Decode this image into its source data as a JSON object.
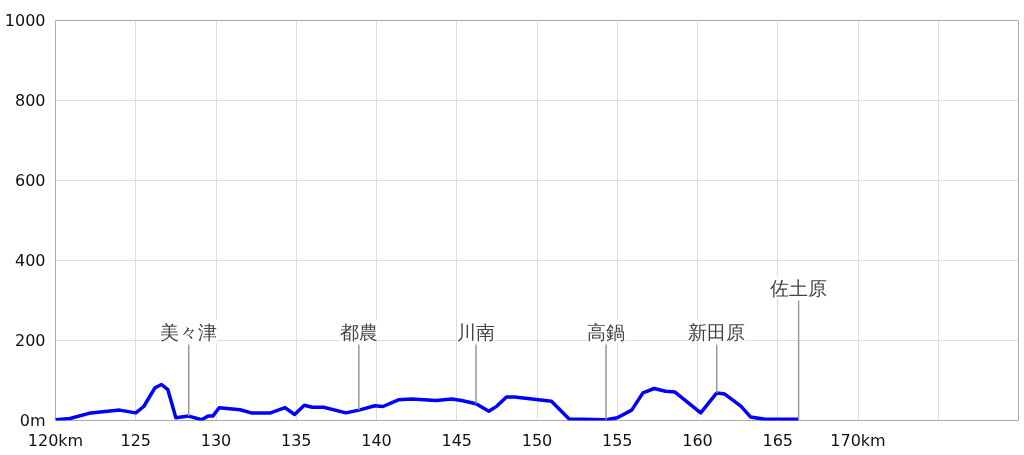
{
  "chart_data": {
    "type": "line",
    "x": [
      120,
      120.9,
      122.2,
      124.0,
      125.0,
      125.5,
      126.2,
      126.6,
      127.0,
      127.5,
      128.3,
      129.1,
      129.5,
      129.8,
      130.2,
      131.5,
      132.2,
      133.4,
      134.3,
      134.9,
      135.5,
      136.0,
      136.7,
      138.1,
      138.9,
      139.9,
      140.4,
      141.4,
      142.2,
      143.7,
      144.7,
      145.3,
      146.2,
      147.0,
      147.5,
      148.1,
      148.6,
      150.9,
      152.0,
      154.3,
      155.0,
      155.9,
      156.6,
      157.3,
      158.0,
      158.6,
      160.2,
      161.2,
      161.7,
      162.7,
      163.3,
      164.2,
      166.3
    ],
    "series": [
      {
        "color": "#0000ff",
        "values": [
          2,
          5,
          19,
          26,
          19,
          35,
          82,
          90,
          77,
          7,
          11,
          2,
          11,
          11,
          32,
          27,
          19,
          19,
          32,
          15,
          38,
          33,
          33,
          19,
          26,
          37,
          35,
          52,
          54,
          50,
          54,
          50,
          42,
          23,
          36,
          59,
          59,
          48,
          4,
          2,
          7,
          26,
          69,
          80,
          73,
          71,
          19,
          69,
          66,
          36,
          9,
          3,
          3
        ]
      }
    ],
    "xlim": [
      120,
      180
    ],
    "xticks": [
      {
        "value": 120,
        "label": "120km"
      },
      125,
      130,
      135,
      140,
      145,
      150,
      155,
      160,
      165,
      {
        "value": 170,
        "label": "170km"
      },
      {
        "value": 175,
        "label": null
      }
    ],
    "ylim": [
      0,
      1000
    ],
    "yticks": [
      {
        "value": 0,
        "label": "0m"
      },
      200,
      400,
      600,
      800,
      1000
    ],
    "grid": true,
    "line_style": "solid",
    "marker": "none",
    "annotations": [
      {
        "text": "美々津",
        "x": 128.3,
        "y": 11
      },
      {
        "text": "都農",
        "x": 138.9,
        "y": 26
      },
      {
        "text": "川南",
        "x": 146.2,
        "y": 42
      },
      {
        "text": "高鍋",
        "x": 154.3,
        "y": 2
      },
      {
        "text": "新田原",
        "x": 161.2,
        "y": 69
      },
      {
        "text": "佐土原",
        "x": 166.3,
        "y": 3
      }
    ]
  }
}
